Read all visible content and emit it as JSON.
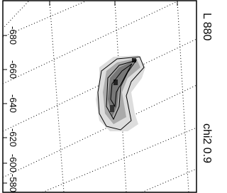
{
  "axis": {
    "tick_labels": [
      "-680",
      "-660",
      "-640",
      "-620",
      "-600",
      "-580"
    ]
  },
  "annotations": {
    "band": "L 880",
    "statistic": "chi2 0.9"
  }
}
